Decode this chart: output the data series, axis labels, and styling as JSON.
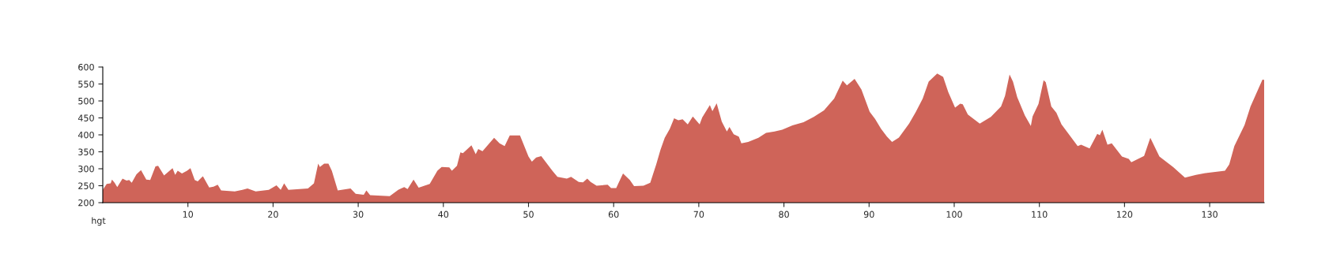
{
  "chart_data": {
    "type": "area",
    "xlabel": "hgt",
    "xlim": [
      0,
      136.4
    ],
    "ylim": [
      200,
      600
    ],
    "xticks": [
      10,
      20,
      30,
      40,
      50,
      60,
      70,
      80,
      90,
      100,
      110,
      120,
      130
    ],
    "yticks": [
      200,
      250,
      300,
      350,
      400,
      450,
      500,
      550,
      600
    ],
    "grid": false,
    "series": [
      {
        "color": "#cf6459",
        "x": [
          0,
          0.46,
          0.93,
          1.08,
          1.39,
          1.7,
          2.32,
          2.79,
          3.1,
          3.4,
          3.96,
          4.49,
          5.11,
          5.57,
          6.19,
          6.5,
          7.2,
          8.2,
          8.5,
          8.8,
          9.3,
          9.9,
          10.3,
          10.8,
          11.15,
          11.76,
          12.5,
          13,
          13.5,
          13.9,
          15.5,
          16.4,
          17,
          17.96,
          19.5,
          20.4,
          20.9,
          21.3,
          21.8,
          24.1,
          24.8,
          25.3,
          25.5,
          26,
          26.5,
          26.9,
          27.6,
          29.1,
          29.7,
          30.65,
          30.96,
          31.4,
          33.7,
          34.7,
          35.4,
          35.8,
          36.5,
          37.1,
          38.4,
          39.3,
          39.8,
          40.7,
          41,
          41.6,
          42,
          42.3,
          43.3,
          43.8,
          44.1,
          44.6,
          45.96,
          46.6,
          47.2,
          47.8,
          49.0,
          50.0,
          50.4,
          50.9,
          51.5,
          52.8,
          53.4,
          54.5,
          55,
          55.9,
          56.4,
          56.9,
          57.3,
          58.0,
          59.3,
          59.7,
          60.3,
          61.1,
          61.9,
          62.4,
          63.5,
          64.3,
          65.0,
          65.5,
          66.0,
          66.6,
          67.1,
          67.6,
          68.1,
          68.7,
          69.3,
          70.1,
          70.4,
          71.3,
          71.6,
          72.1,
          72.7,
          73.3,
          73.6,
          74.1,
          74.7,
          75.0,
          75.8,
          77.0,
          77.9,
          78.9,
          79.8,
          81.0,
          82.3,
          83.5,
          84.7,
          85.9,
          86.9,
          87.4,
          88.3,
          89.1,
          90.07,
          90.7,
          91.4,
          92.1,
          92.7,
          93.5,
          94.7,
          95.5,
          96.3,
          97.0,
          98.0,
          98.7,
          99.3,
          100.1,
          100.7,
          101.0,
          101.6,
          103.0,
          104.3,
          105.5,
          105.97,
          106.5,
          106.9,
          107.4,
          108.3,
          109.0,
          109.2,
          109.9,
          110.5,
          110.75,
          111.4,
          112.0,
          112.6,
          114.5,
          114.9,
          115.9,
          116.8,
          117.1,
          117.4,
          118.0,
          118.5,
          119.7,
          120.5,
          120.8,
          122.3,
          123.03,
          124.1,
          125.7,
          127.1,
          128.4,
          129.7,
          131.8,
          132.3,
          132.9,
          134.1,
          134.8,
          136.2,
          136.4
        ],
        "values": [
          238,
          255,
          257,
          268,
          259,
          246,
          271,
          265,
          267,
          259,
          284,
          296,
          268,
          267,
          307,
          309,
          280,
          302,
          282,
          294,
          286,
          294,
          302,
          267,
          263,
          278,
          245,
          247,
          253,
          236,
          233,
          238,
          242,
          233,
          238,
          251,
          238,
          257,
          238,
          242,
          257,
          315,
          305,
          315,
          315,
          294,
          236,
          242,
          226,
          223,
          236,
          222,
          219,
          238,
          246,
          240,
          268,
          244,
          255,
          294,
          305,
          304,
          294,
          309,
          348,
          346,
          369,
          343,
          358,
          352,
          391,
          375,
          367,
          398,
          398,
          336,
          321,
          333,
          337,
          294,
          276,
          271,
          276,
          261,
          260,
          271,
          261,
          250,
          253,
          243,
          243,
          286,
          267,
          249,
          250,
          259,
          313,
          356,
          391,
          418,
          449,
          443,
          446,
          431,
          454,
          431,
          451,
          488,
          470,
          493,
          439,
          410,
          423,
          402,
          395,
          375,
          379,
          391,
          406,
          410,
          415,
          428,
          437,
          453,
          472,
          507,
          560,
          546,
          565,
          534,
          468,
          447,
          418,
          395,
          379,
          392,
          433,
          468,
          507,
          557,
          581,
          571,
          526,
          480,
          492,
          490,
          460,
          433,
          453,
          484,
          515,
          578,
          557,
          511,
          457,
          426,
          454,
          491,
          561,
          555,
          484,
          465,
          431,
          367,
          371,
          360,
          403,
          399,
          415,
          371,
          375,
          336,
          329,
          319,
          338,
          391,
          336,
          305,
          274,
          282,
          288,
          294,
          313,
          367,
          429,
          484,
          563,
          562
        ]
      }
    ]
  }
}
